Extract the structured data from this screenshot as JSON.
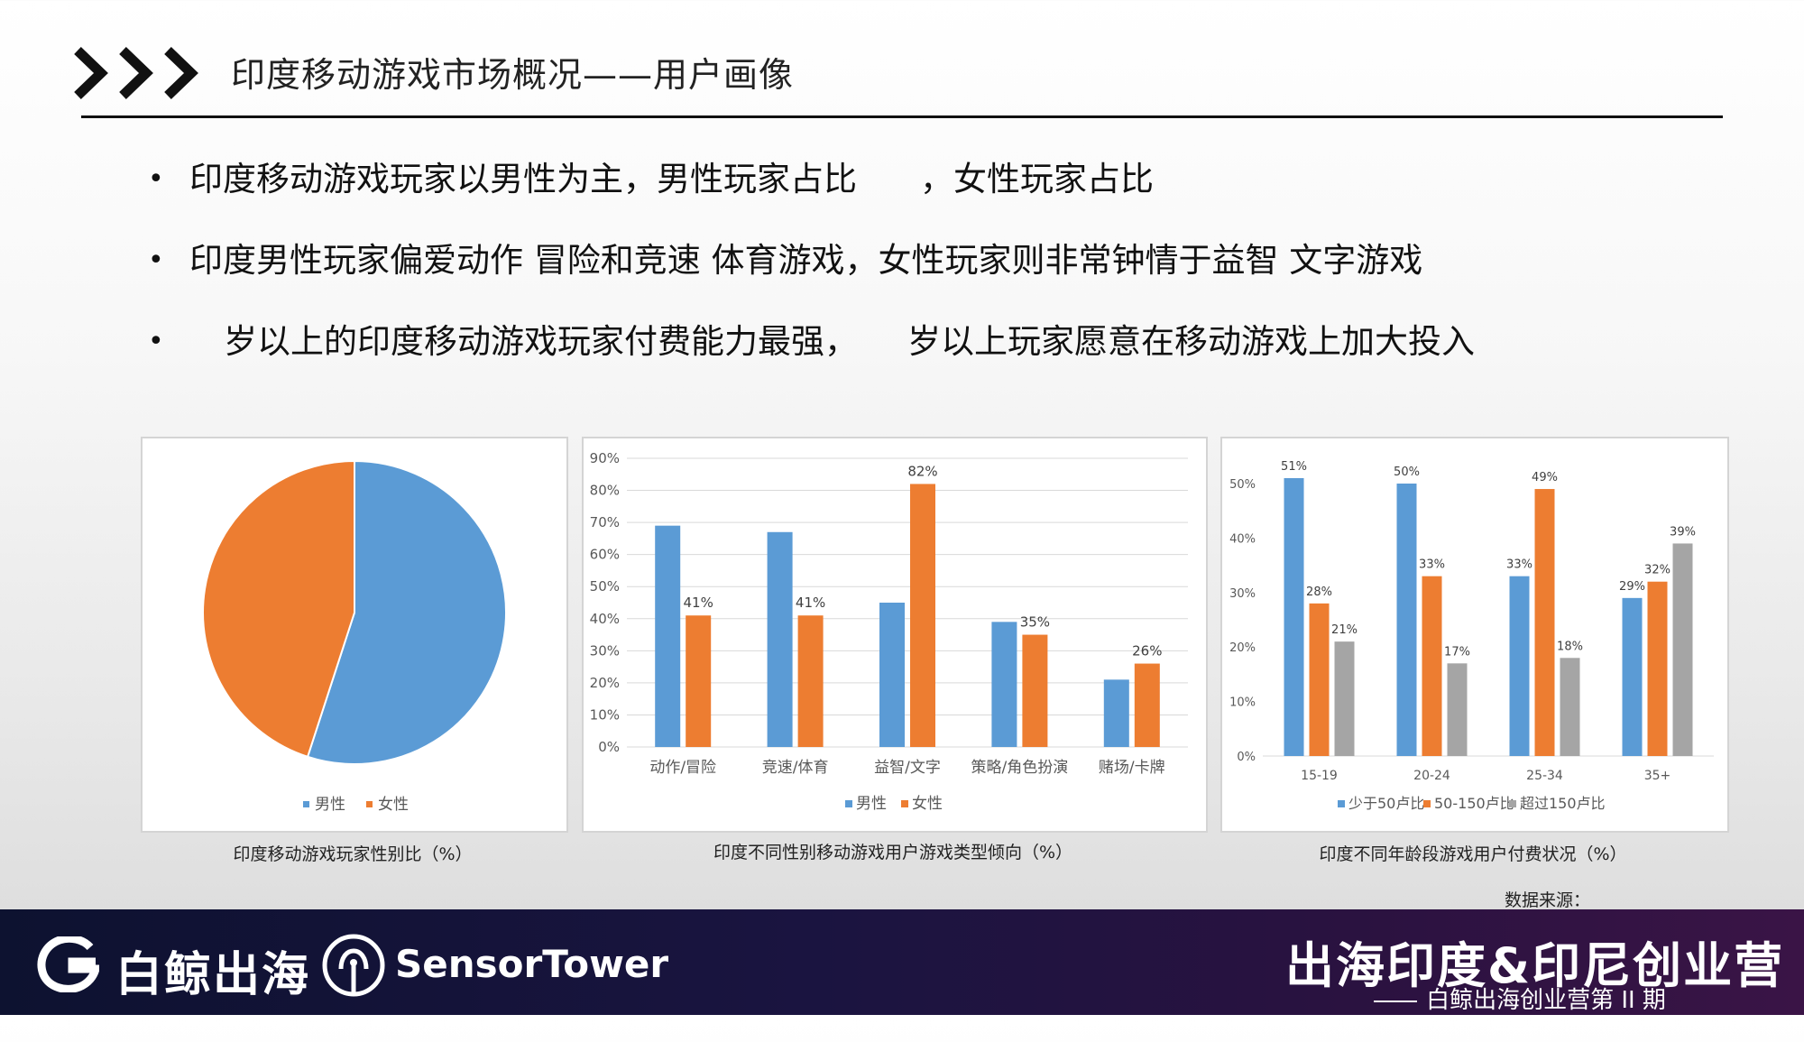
{
  "header": {
    "title": "印度移动游戏市场概况——用户画像"
  },
  "bullets": [
    {
      "before": "印度移动游戏玩家以男性为主，男性玩家占比",
      "after": "，女性玩家占比"
    },
    {
      "before": "印度男性玩家偏爱动作 冒险和竞速 体育游戏，女性玩家则非常钟情于益智 文字游戏",
      "after": ""
    },
    {
      "before": "岁以上的印度移动游戏玩家付费能力最强，",
      "after": "岁以上玩家愿意在移动游戏上加大投入"
    }
  ],
  "chart_data": [
    {
      "type": "pie",
      "title": "印度移动游戏玩家性别比（%）",
      "categories": [
        "男性",
        "女性"
      ],
      "values": [
        55,
        45
      ],
      "colors": [
        "#5b9bd5",
        "#ed7d31"
      ],
      "legend": "bottom"
    },
    {
      "type": "bar",
      "title": "印度不同性别移动游戏用户游戏类型倾向（%）",
      "categories": [
        "动作/冒险",
        "竞速/体育",
        "益智/文字",
        "策略/角色扮演",
        "赌场/卡牌"
      ],
      "series": [
        {
          "name": "男性",
          "values": [
            69,
            67,
            45,
            39,
            21
          ],
          "color": "#5b9bd5"
        },
        {
          "name": "女性",
          "values": [
            41,
            41,
            82,
            35,
            26
          ],
          "color": "#ed7d31"
        }
      ],
      "data_labels": {
        "女性": [
          "41%",
          "41%",
          "82%",
          "35%",
          "26%"
        ]
      },
      "ylim": [
        0,
        90
      ],
      "yticks": [
        "0%",
        "10%",
        "20%",
        "30%",
        "40%",
        "50%",
        "60%",
        "70%",
        "80%",
        "90%"
      ],
      "grid": true,
      "legend": "bottom"
    },
    {
      "type": "bar",
      "title": "印度不同年龄段游戏用户付费状况（%）",
      "categories": [
        "15-19",
        "20-24",
        "25-34",
        "35+"
      ],
      "series": [
        {
          "name": "少于50卢比",
          "values": [
            51,
            50,
            33,
            29
          ],
          "color": "#5b9bd5"
        },
        {
          "name": "50-150卢比",
          "values": [
            28,
            33,
            49,
            32
          ],
          "color": "#ed7d31"
        },
        {
          "name": "超过150卢比",
          "values": [
            21,
            17,
            18,
            39
          ],
          "color": "#a5a5a5"
        }
      ],
      "data_labels": [
        [
          "51%",
          "28%",
          "21%"
        ],
        [
          "50%",
          "33%",
          "17%"
        ],
        [
          "33%",
          "49%",
          "18%"
        ],
        [
          "29%",
          "32%",
          "39%"
        ]
      ],
      "ylim": [
        0,
        50
      ],
      "yticks": [
        "0%",
        "10%",
        "20%",
        "30%",
        "40%",
        "50%"
      ],
      "grid": false,
      "legend": "bottom"
    }
  ],
  "source_label": "数据来源：",
  "footer": {
    "brand_left": "白鲸出海",
    "brand_right": "SensorTower",
    "camp_title": "出海印度&印尼创业营",
    "camp_subtitle": "白鲸出海创业营第 II 期"
  }
}
